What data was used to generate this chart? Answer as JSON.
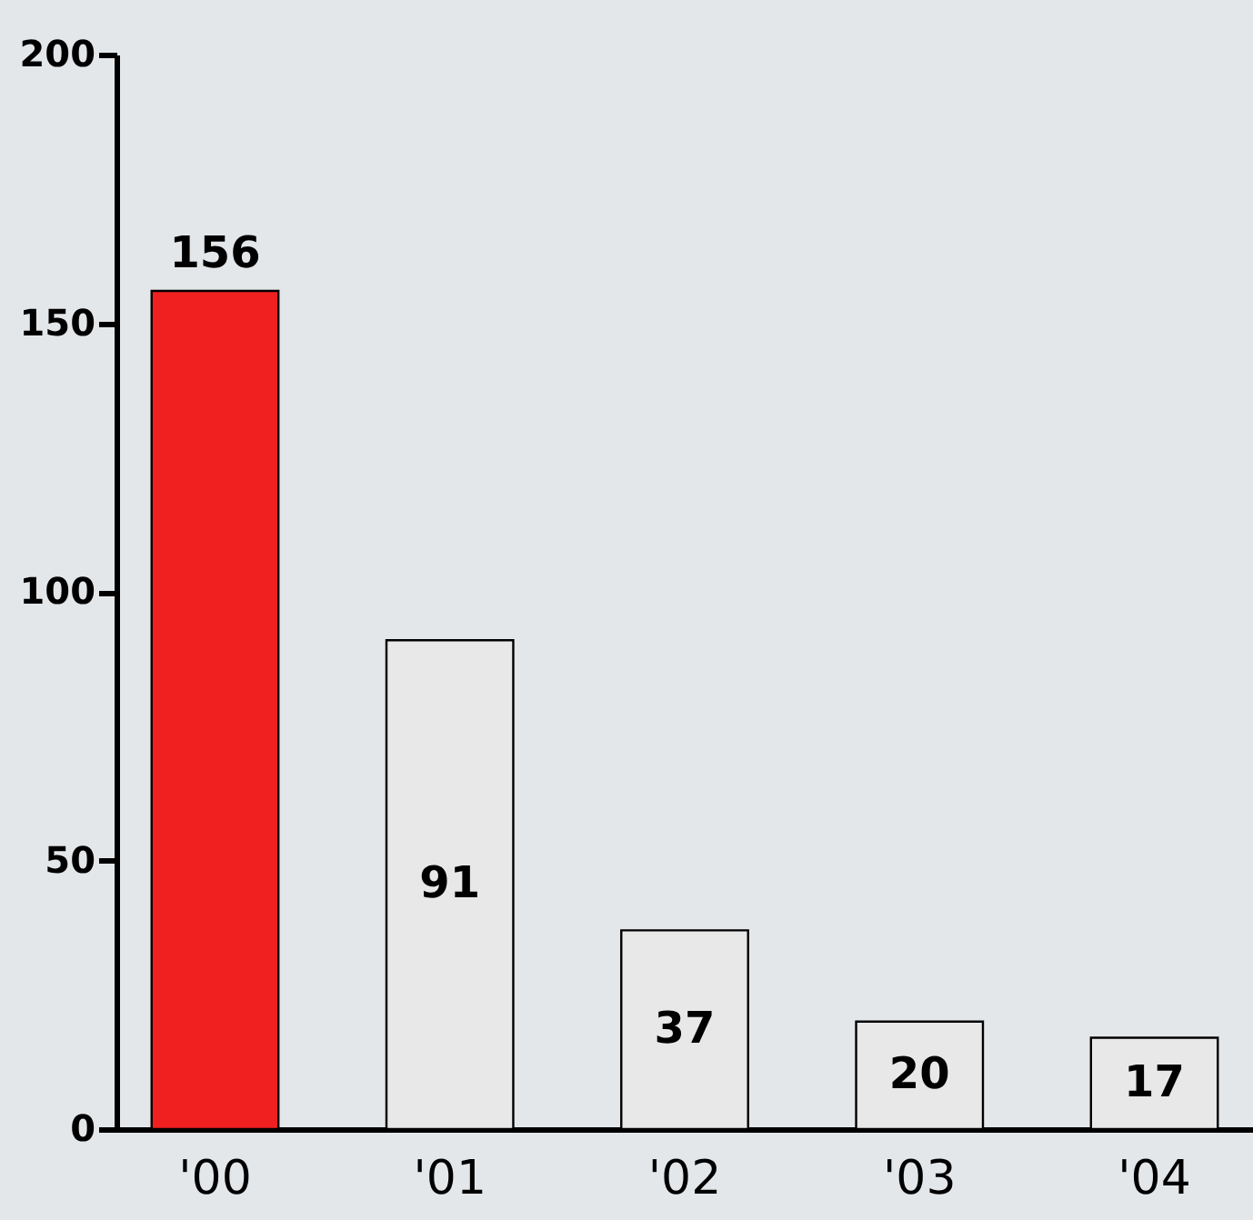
{
  "chart_data": {
    "type": "bar",
    "categories": [
      "'00",
      "'01",
      "'02",
      "'03",
      "'04"
    ],
    "values": [
      156,
      91,
      37,
      20,
      17
    ],
    "colors": [
      "#f02020",
      "#e8e8e8",
      "#e8e8e8",
      "#e8e8e8",
      "#e8e8e8"
    ],
    "ylim": [
      0,
      200
    ],
    "yticks": [
      0,
      50,
      100,
      150,
      200
    ],
    "grid": false,
    "data_labels": true
  }
}
